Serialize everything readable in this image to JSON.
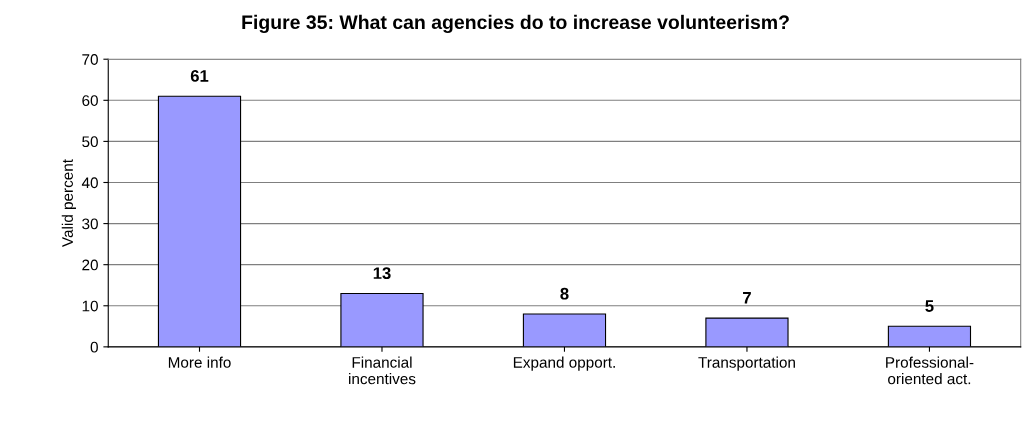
{
  "chart_data": {
    "type": "bar",
    "title": "Figure 35: What can agencies do to increase volunteerism?",
    "ylabel": "Valid percent",
    "categories": [
      "More info",
      "Financial\nincentives",
      "Expand opport.",
      "Transportation",
      "Professional-\noriented act."
    ],
    "values": [
      61,
      13,
      8,
      7,
      5
    ],
    "color": "#9999ff",
    "ylim": [
      0,
      70
    ],
    "yticks": [
      0,
      10,
      20,
      30,
      40,
      50,
      60,
      70
    ],
    "grid": "y",
    "data_labels": true
  }
}
